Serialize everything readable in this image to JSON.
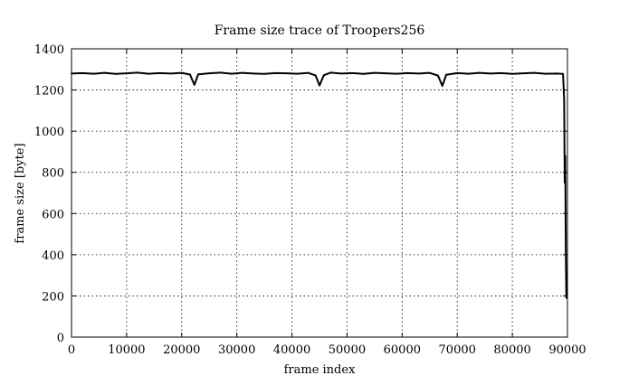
{
  "chart_data": {
    "type": "line",
    "title": "Frame size trace of Troopers256",
    "xlabel": "frame index",
    "ylabel": "frame size [byte]",
    "xlim": [
      0,
      90000
    ],
    "ylim": [
      0,
      1400
    ],
    "xticks": [
      0,
      10000,
      20000,
      30000,
      40000,
      50000,
      60000,
      70000,
      80000,
      90000
    ],
    "yticks": [
      0,
      200,
      400,
      600,
      800,
      1000,
      1200,
      1400
    ],
    "grid": true,
    "series": [
      {
        "color": "#000000",
        "x": [
          0,
          2000,
          4000,
          6000,
          8000,
          10000,
          12000,
          14000,
          16000,
          18000,
          20000,
          21500,
          22300,
          23000,
          25000,
          27000,
          29000,
          31000,
          33000,
          35000,
          37000,
          39000,
          41000,
          43000,
          44300,
          45000,
          45800,
          47000,
          49000,
          51000,
          53000,
          55000,
          57000,
          59000,
          61000,
          63000,
          65000,
          66500,
          67300,
          68000,
          70000,
          72000,
          74000,
          76000,
          78000,
          80000,
          82000,
          84000,
          86000,
          88000,
          89200,
          89400,
          89500,
          89600,
          89700,
          89800
        ],
        "y": [
          1280,
          1282,
          1279,
          1283,
          1278,
          1281,
          1284,
          1279,
          1282,
          1280,
          1283,
          1275,
          1225,
          1276,
          1281,
          1284,
          1279,
          1283,
          1280,
          1278,
          1282,
          1281,
          1279,
          1283,
          1270,
          1222,
          1272,
          1284,
          1280,
          1282,
          1278,
          1283,
          1281,
          1279,
          1282,
          1280,
          1283,
          1270,
          1220,
          1274,
          1282,
          1279,
          1283,
          1280,
          1282,
          1278,
          1281,
          1283,
          1279,
          1280,
          1278,
          1150,
          750,
          880,
          420,
          190
        ]
      }
    ]
  }
}
